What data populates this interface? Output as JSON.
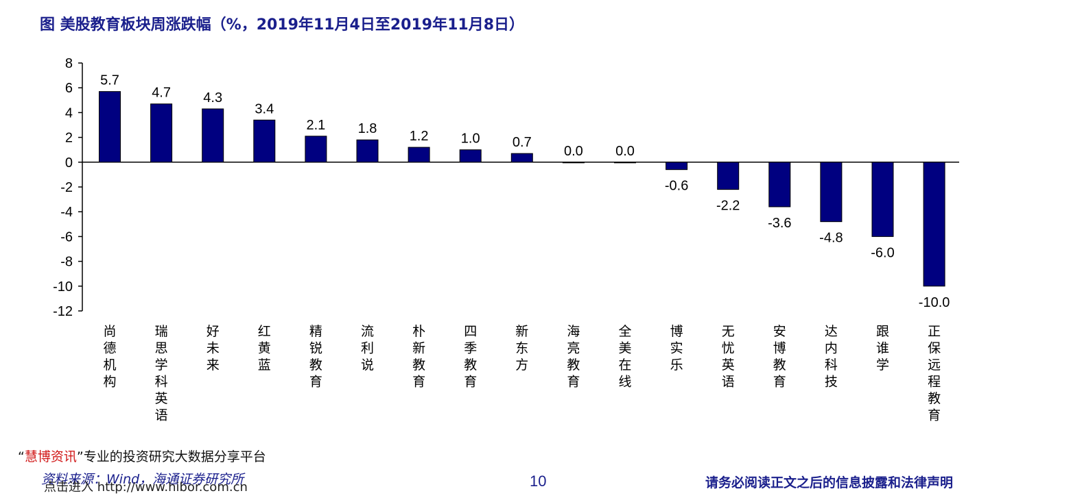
{
  "title": "图  美股教育板块周涨跌幅（%，2019年11月4日至2019年11月8日）",
  "chart_data": {
    "type": "bar",
    "categories": [
      "尚德机构",
      "瑞思学科英语",
      "好未来",
      "红黄蓝",
      "精锐教育",
      "流利说",
      "朴新教育",
      "四季教育",
      "新东方",
      "海亮教育",
      "全美在线",
      "博实乐",
      "无忧英语",
      "安博教育",
      "达内科技",
      "跟谁学",
      "正保远程教育"
    ],
    "values": [
      5.7,
      4.7,
      4.3,
      3.4,
      2.1,
      1.8,
      1.2,
      1.0,
      0.7,
      0.0,
      0.0,
      -0.6,
      -2.2,
      -3.6,
      -4.8,
      -6.0,
      -10.0
    ],
    "value_labels": [
      "5.7",
      "4.7",
      "4.3",
      "3.4",
      "2.1",
      "1.8",
      "1.2",
      "1.0",
      "0.7",
      "0.0",
      "0.0",
      "-0.6",
      "-2.2",
      "-3.6",
      "-4.8",
      "-6.0",
      "-10.0"
    ],
    "yticks": [
      "8",
      "6",
      "4",
      "2",
      "0",
      "-2",
      "-4",
      "-6",
      "-8",
      "-10",
      "-12"
    ],
    "ylim": [
      -12,
      8
    ],
    "bar_color": "#000080",
    "grid": false,
    "legend": "none"
  },
  "footer": {
    "watermark_quote_open": "“",
    "watermark_brand": "慧博资讯",
    "watermark_rest": "”专业的投资研究大数据分享平台",
    "source": "资料来源：Wind，海通证券研究所",
    "link": "点击进入 http://www.hibor.com.cn",
    "page_number": "10",
    "disclaimer": "请务必阅读正文之后的信息披露和法律声明"
  }
}
